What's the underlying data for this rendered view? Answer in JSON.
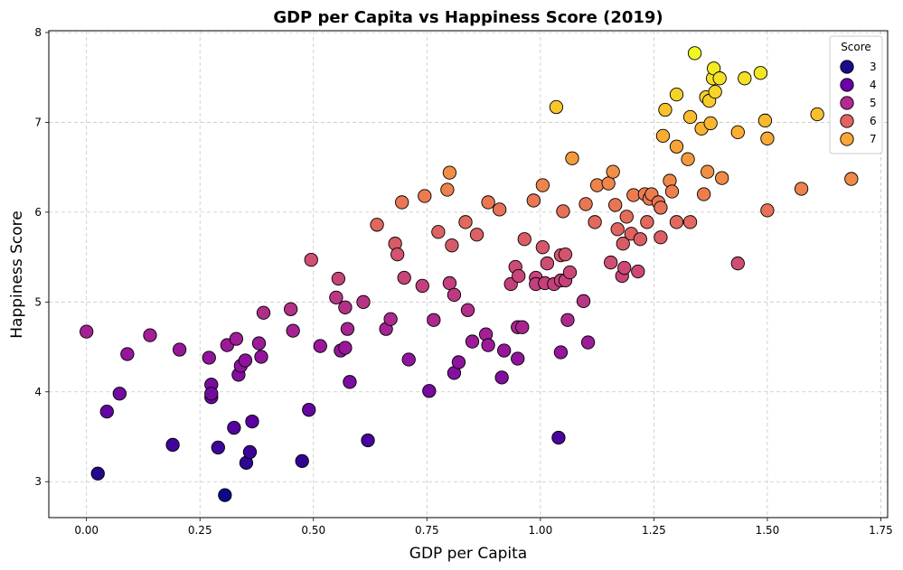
{
  "chart_data": {
    "type": "scatter",
    "title": "GDP per Capita vs Happiness Score (2019)",
    "xlabel": "GDP per Capita",
    "ylabel": "Happiness Score",
    "xlim": [
      -0.083,
      1.765
    ],
    "ylim": [
      2.6,
      8.02
    ],
    "xticks": [
      "0.00",
      "0.25",
      "0.50",
      "0.75",
      "1.00",
      "1.25",
      "1.50",
      "1.75"
    ],
    "yticks": [
      "3",
      "4",
      "5",
      "6",
      "7",
      "8"
    ],
    "grid": true,
    "legend": {
      "title": "Score",
      "placement": "top-right",
      "entries": [
        "3",
        "4",
        "5",
        "6",
        "7"
      ]
    },
    "color_scale": {
      "name": "plasma",
      "vmin": 2.85,
      "vmax": 7.77,
      "stops": [
        "#0d0887",
        "#5b02a3",
        "#9a179b",
        "#cb4678",
        "#eb7852",
        "#fbb32f",
        "#f0f921"
      ]
    },
    "legend_colors": [
      "#180c8a",
      "#6b01a7",
      "#b12a90",
      "#e16462",
      "#fca636"
    ],
    "points": [
      [
        0.0,
        4.67
      ],
      [
        0.025,
        3.09
      ],
      [
        0.045,
        3.78
      ],
      [
        0.073,
        3.98
      ],
      [
        0.09,
        4.42
      ],
      [
        0.14,
        4.63
      ],
      [
        0.19,
        3.41
      ],
      [
        0.205,
        4.47
      ],
      [
        0.27,
        4.38
      ],
      [
        0.275,
        4.08
      ],
      [
        0.275,
        3.94
      ],
      [
        0.275,
        3.98
      ],
      [
        0.29,
        3.38
      ],
      [
        0.305,
        2.85
      ],
      [
        0.31,
        4.52
      ],
      [
        0.325,
        3.6
      ],
      [
        0.33,
        4.59
      ],
      [
        0.335,
        4.19
      ],
      [
        0.34,
        4.29
      ],
      [
        0.35,
        4.35
      ],
      [
        0.352,
        3.21
      ],
      [
        0.36,
        3.33
      ],
      [
        0.365,
        3.67
      ],
      [
        0.38,
        4.54
      ],
      [
        0.385,
        4.39
      ],
      [
        0.39,
        4.88
      ],
      [
        0.45,
        4.92
      ],
      [
        0.455,
        4.68
      ],
      [
        0.475,
        3.23
      ],
      [
        0.49,
        3.8
      ],
      [
        0.495,
        5.47
      ],
      [
        0.515,
        4.51
      ],
      [
        0.55,
        5.05
      ],
      [
        0.555,
        5.26
      ],
      [
        0.56,
        4.46
      ],
      [
        0.57,
        4.49
      ],
      [
        0.57,
        4.94
      ],
      [
        0.575,
        4.7
      ],
      [
        0.58,
        4.11
      ],
      [
        0.61,
        5.0
      ],
      [
        0.62,
        3.46
      ],
      [
        0.64,
        5.86
      ],
      [
        0.66,
        4.7
      ],
      [
        0.67,
        4.81
      ],
      [
        0.68,
        5.65
      ],
      [
        0.685,
        5.53
      ],
      [
        0.695,
        6.11
      ],
      [
        0.7,
        5.27
      ],
      [
        0.71,
        4.36
      ],
      [
        0.74,
        5.18
      ],
      [
        0.745,
        6.18
      ],
      [
        0.755,
        4.01
      ],
      [
        0.765,
        4.8
      ],
      [
        0.775,
        5.78
      ],
      [
        0.795,
        6.25
      ],
      [
        0.8,
        5.21
      ],
      [
        0.8,
        6.44
      ],
      [
        0.805,
        5.63
      ],
      [
        0.81,
        4.21
      ],
      [
        0.81,
        5.08
      ],
      [
        0.82,
        4.33
      ],
      [
        0.835,
        5.89
      ],
      [
        0.84,
        4.91
      ],
      [
        0.85,
        4.56
      ],
      [
        0.86,
        5.75
      ],
      [
        0.88,
        4.64
      ],
      [
        0.885,
        4.52
      ],
      [
        0.885,
        6.11
      ],
      [
        0.91,
        6.03
      ],
      [
        0.915,
        4.16
      ],
      [
        0.92,
        4.46
      ],
      [
        0.935,
        5.2
      ],
      [
        0.945,
        5.39
      ],
      [
        0.95,
        4.37
      ],
      [
        0.95,
        4.72
      ],
      [
        0.952,
        5.29
      ],
      [
        0.96,
        4.72
      ],
      [
        0.965,
        5.7
      ],
      [
        0.985,
        6.13
      ],
      [
        0.99,
        5.27
      ],
      [
        0.99,
        5.2
      ],
      [
        1.005,
        5.61
      ],
      [
        1.005,
        6.3
      ],
      [
        1.01,
        5.21
      ],
      [
        1.015,
        5.43
      ],
      [
        1.03,
        5.2
      ],
      [
        1.035,
        7.17
      ],
      [
        1.04,
        3.49
      ],
      [
        1.045,
        4.44
      ],
      [
        1.045,
        5.24
      ],
      [
        1.045,
        5.52
      ],
      [
        1.05,
        6.01
      ],
      [
        1.055,
        5.24
      ],
      [
        1.055,
        5.53
      ],
      [
        1.06,
        4.8
      ],
      [
        1.065,
        5.33
      ],
      [
        1.07,
        6.6
      ],
      [
        1.095,
        5.01
      ],
      [
        1.1,
        6.09
      ],
      [
        1.105,
        4.55
      ],
      [
        1.12,
        5.89
      ],
      [
        1.125,
        6.3
      ],
      [
        1.15,
        6.32
      ],
      [
        1.155,
        5.44
      ],
      [
        1.16,
        6.45
      ],
      [
        1.165,
        6.08
      ],
      [
        1.17,
        5.81
      ],
      [
        1.18,
        5.29
      ],
      [
        1.182,
        5.65
      ],
      [
        1.185,
        5.38
      ],
      [
        1.19,
        5.95
      ],
      [
        1.2,
        5.76
      ],
      [
        1.205,
        6.19
      ],
      [
        1.215,
        5.34
      ],
      [
        1.22,
        5.7
      ],
      [
        1.23,
        6.2
      ],
      [
        1.235,
        5.89
      ],
      [
        1.24,
        6.15
      ],
      [
        1.245,
        6.2
      ],
      [
        1.26,
        6.11
      ],
      [
        1.265,
        6.05
      ],
      [
        1.265,
        5.72
      ],
      [
        1.27,
        6.85
      ],
      [
        1.275,
        7.14
      ],
      [
        1.285,
        6.35
      ],
      [
        1.29,
        6.23
      ],
      [
        1.3,
        6.73
      ],
      [
        1.3,
        5.89
      ],
      [
        1.3,
        7.31
      ],
      [
        1.325,
        6.59
      ],
      [
        1.33,
        7.06
      ],
      [
        1.33,
        5.89
      ],
      [
        1.34,
        7.77
      ],
      [
        1.355,
        6.93
      ],
      [
        1.36,
        6.2
      ],
      [
        1.365,
        7.28
      ],
      [
        1.368,
        6.45
      ],
      [
        1.372,
        7.24
      ],
      [
        1.375,
        6.99
      ],
      [
        1.38,
        7.49
      ],
      [
        1.382,
        7.6
      ],
      [
        1.385,
        7.34
      ],
      [
        1.395,
        7.49
      ],
      [
        1.4,
        6.38
      ],
      [
        1.435,
        5.43
      ],
      [
        1.435,
        6.89
      ],
      [
        1.45,
        7.49
      ],
      [
        1.485,
        7.55
      ],
      [
        1.495,
        7.02
      ],
      [
        1.5,
        6.82
      ],
      [
        1.5,
        6.02
      ],
      [
        1.575,
        6.26
      ],
      [
        1.61,
        7.09
      ],
      [
        1.685,
        6.37
      ]
    ]
  }
}
